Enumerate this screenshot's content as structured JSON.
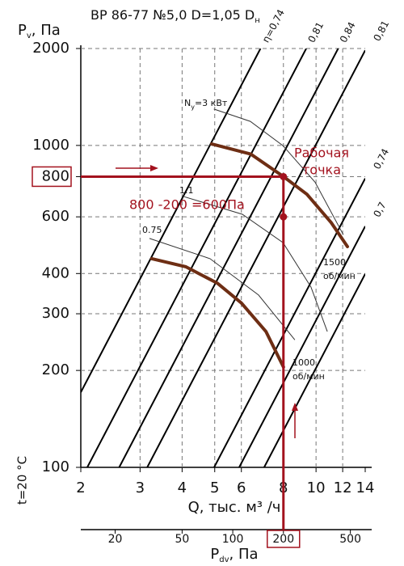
{
  "chart_data": {
    "type": "line",
    "title": [
      "ВР 86-77 №5,0 D=1,05 D",
      "н"
    ],
    "y_label": [
      "P",
      "v",
      ", Па"
    ],
    "x_label": "Q, тыс. м³ /ч",
    "x2_label": [
      "P",
      "dv",
      ", Па"
    ],
    "side_note": "t=20 °C",
    "log_x": true,
    "log_y": true,
    "grid": true,
    "xlim": [
      2,
      14
    ],
    "xticks": [
      2,
      3,
      4,
      5,
      6,
      8,
      10,
      12,
      14
    ],
    "ylim": [
      100,
      2000
    ],
    "yticks": [
      100,
      200,
      300,
      400,
      600,
      800,
      1000,
      2000
    ],
    "x2lim": [
      12.5,
      612.5
    ],
    "x2ticks": [
      20,
      50,
      100,
      200,
      500
    ],
    "series": [
      {
        "name": "1500",
        "unit": "об/мин",
        "color": "#6e2e14",
        "x": [
          4.9,
          6.4,
          8,
          9.4,
          11.1,
          12.4
        ],
        "values": [
          1010,
          940,
          800,
          705,
          575,
          485
        ]
      },
      {
        "name": "1000",
        "unit": "об/мин",
        "color": "#6e2e14",
        "x": [
          3.25,
          4.1,
          5.1,
          6,
          7.1,
          8
        ],
        "values": [
          445,
          420,
          373,
          324,
          264,
          205
        ]
      }
    ],
    "power_curves": [
      {
        "label": [
          "N",
          "у",
          "=3 кВт"
        ],
        "x": [
          4.97,
          6.38,
          7.98,
          9.93,
          12.05
        ],
        "values": [
          1297,
          1188,
          998,
          769,
          528
        ]
      },
      {
        "label": [
          "1.1"
        ],
        "x": [
          4.06,
          6.04,
          7.98,
          9.66,
          10.8
        ],
        "values": [
          693,
          611,
          499,
          363,
          264
        ]
      },
      {
        "label": [
          "0.75"
        ],
        "x": [
          3.2,
          4.84,
          6.75,
          8.65
        ],
        "values": [
          514,
          445,
          343,
          249
        ]
      }
    ],
    "eta_lines": [
      {
        "label": "η=0,74",
        "x": [
          2,
          6.84
        ],
        "values": [
          171,
          2000
        ]
      },
      {
        "label": "0,81",
        "x": [
          2.09,
          9.35
        ],
        "values": [
          100,
          2000
        ]
      },
      {
        "label": "0,84",
        "x": [
          2.6,
          11.63
        ],
        "values": [
          100,
          2000
        ]
      },
      {
        "label": "0,81",
        "x": [
          3.15,
          14
        ],
        "values": [
          100,
          1975
        ]
      },
      {
        "label": "0,74",
        "x": [
          4.98,
          14
        ],
        "values": [
          100,
          790
        ]
      },
      {
        "label": "0,7",
        "x": [
          5.91,
          14
        ],
        "values": [
          100,
          561
        ]
      },
      {
        "label": null,
        "x": [
          7.01,
          14
        ],
        "values": [
          100,
          399
        ]
      }
    ],
    "operating_point": {
      "x": 8,
      "y": 800,
      "label": [
        "Рабочая",
        "точка"
      ],
      "color": "#a3121e"
    },
    "static_point": {
      "x": 8,
      "y": 600
    },
    "dynamic_pressure": 200,
    "note": "800 -200 =600Па"
  }
}
